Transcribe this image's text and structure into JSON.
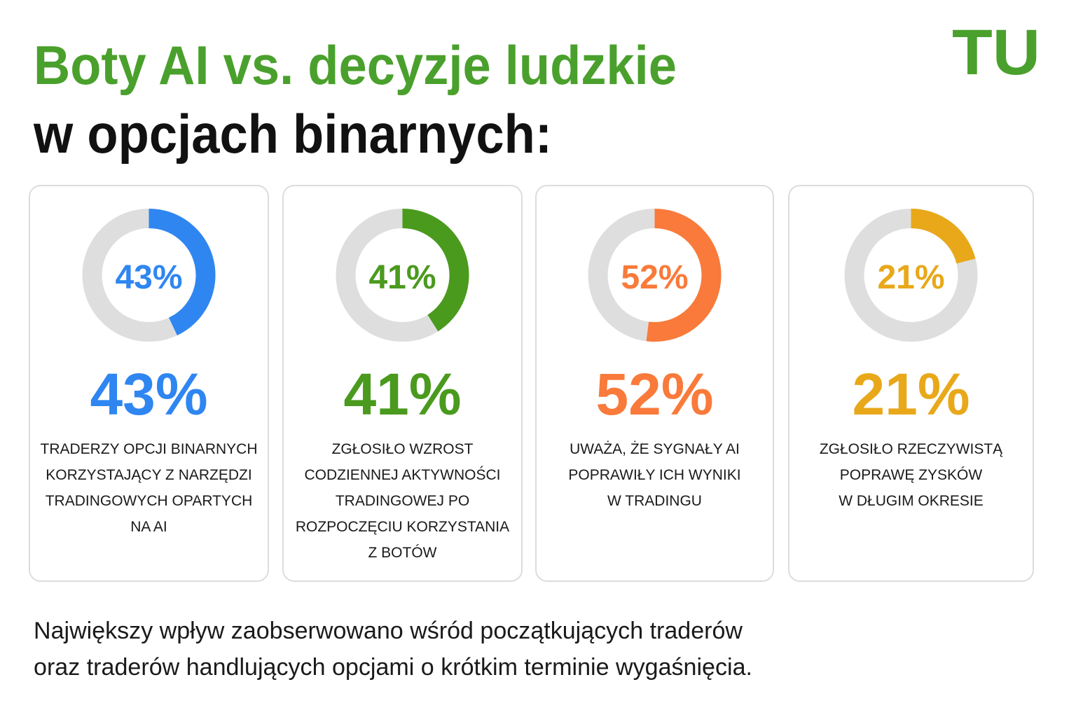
{
  "header": {
    "title_line1": "Boty AI vs. decyzje ludzkie",
    "title_line2": "w opcjach binarnych:",
    "logo": "TU"
  },
  "chart_data": [
    {
      "type": "donut",
      "values": [
        43
      ],
      "value_labels": [
        "43%"
      ],
      "color": "#2f86f0",
      "description": [
        "TRADERZY OPCJI BINARNYCH",
        "KORZYSTAJĄCY Z NARZĘDZI",
        "TRADINGOWYCH OPARTYCH",
        "NA AI"
      ]
    },
    {
      "type": "donut",
      "values": [
        41
      ],
      "value_labels": [
        "41%"
      ],
      "color": "#4a9a1e",
      "description": [
        "ZGŁOSIŁO WZROST",
        "CODZIENNEJ AKTYWNOŚCI",
        "TRADINGOWEJ PO",
        "ROZPOCZĘCIU KORZYSTANIA",
        "Z BOTÓW"
      ]
    },
    {
      "type": "donut",
      "values": [
        52
      ],
      "value_labels": [
        "52%"
      ],
      "color": "#f97a3a",
      "description": [
        "UWAŻA, ŻE SYGNAŁY AI",
        "POPRAWIŁY ICH WYNIKI",
        "W TRADINGU"
      ]
    },
    {
      "type": "donut",
      "values": [
        21
      ],
      "value_labels": [
        "21%"
      ],
      "color": "#e8a81a",
      "description": [
        "ZGŁOSIŁO RZECZYWISTĄ",
        "POPRAWĘ ZYSKÓW",
        "W DŁUGIM OKRESIE"
      ]
    }
  ],
  "footer": {
    "lines": [
      "Największy wpływ zaobserwowano wśród początkujących traderów",
      "oraz traderów handlujących opcjami o krótkim terminie wygaśnięcia."
    ]
  }
}
